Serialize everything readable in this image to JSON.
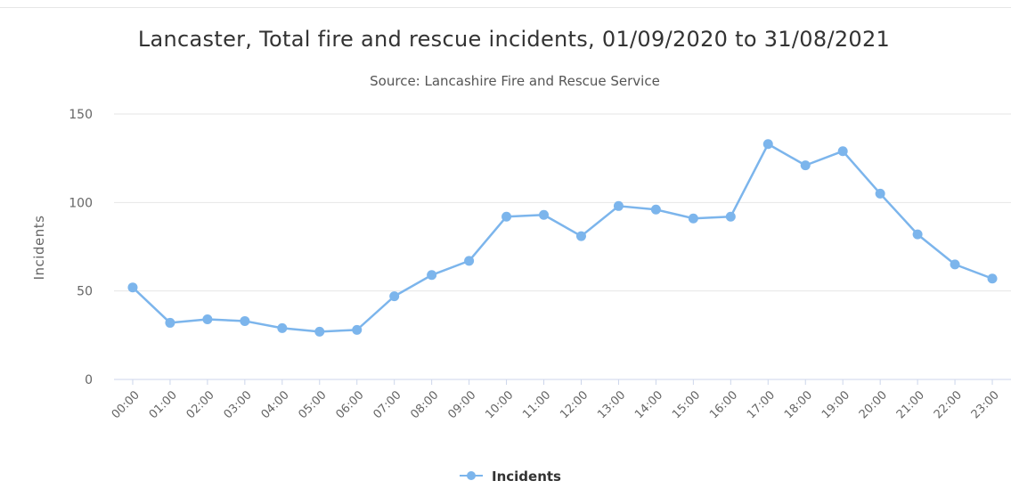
{
  "chart_data": {
    "type": "line",
    "title": "Lancaster, Total fire and rescue incidents, 01/09/2020 to 31/08/2021",
    "subtitle": "Source: Lancashire Fire and Rescue Service",
    "xlabel": "",
    "ylabel": "Incidents",
    "ylim": [
      0,
      150
    ],
    "yticks": [
      "0",
      "50",
      "100",
      "150"
    ],
    "grid": true,
    "legend_position": "bottom-center",
    "categories": [
      "00:00",
      "01:00",
      "02:00",
      "03:00",
      "04:00",
      "05:00",
      "06:00",
      "07:00",
      "08:00",
      "09:00",
      "10:00",
      "11:00",
      "12:00",
      "13:00",
      "14:00",
      "15:00",
      "16:00",
      "17:00",
      "18:00",
      "19:00",
      "20:00",
      "21:00",
      "22:00",
      "23:00"
    ],
    "series": [
      {
        "name": "Incidents",
        "color": "#7cb5ec",
        "values": [
          52,
          32,
          34,
          33,
          29,
          27,
          28,
          47,
          59,
          67,
          92,
          93,
          81,
          98,
          96,
          91,
          92,
          133,
          121,
          129,
          105,
          82,
          65,
          57
        ]
      }
    ]
  }
}
